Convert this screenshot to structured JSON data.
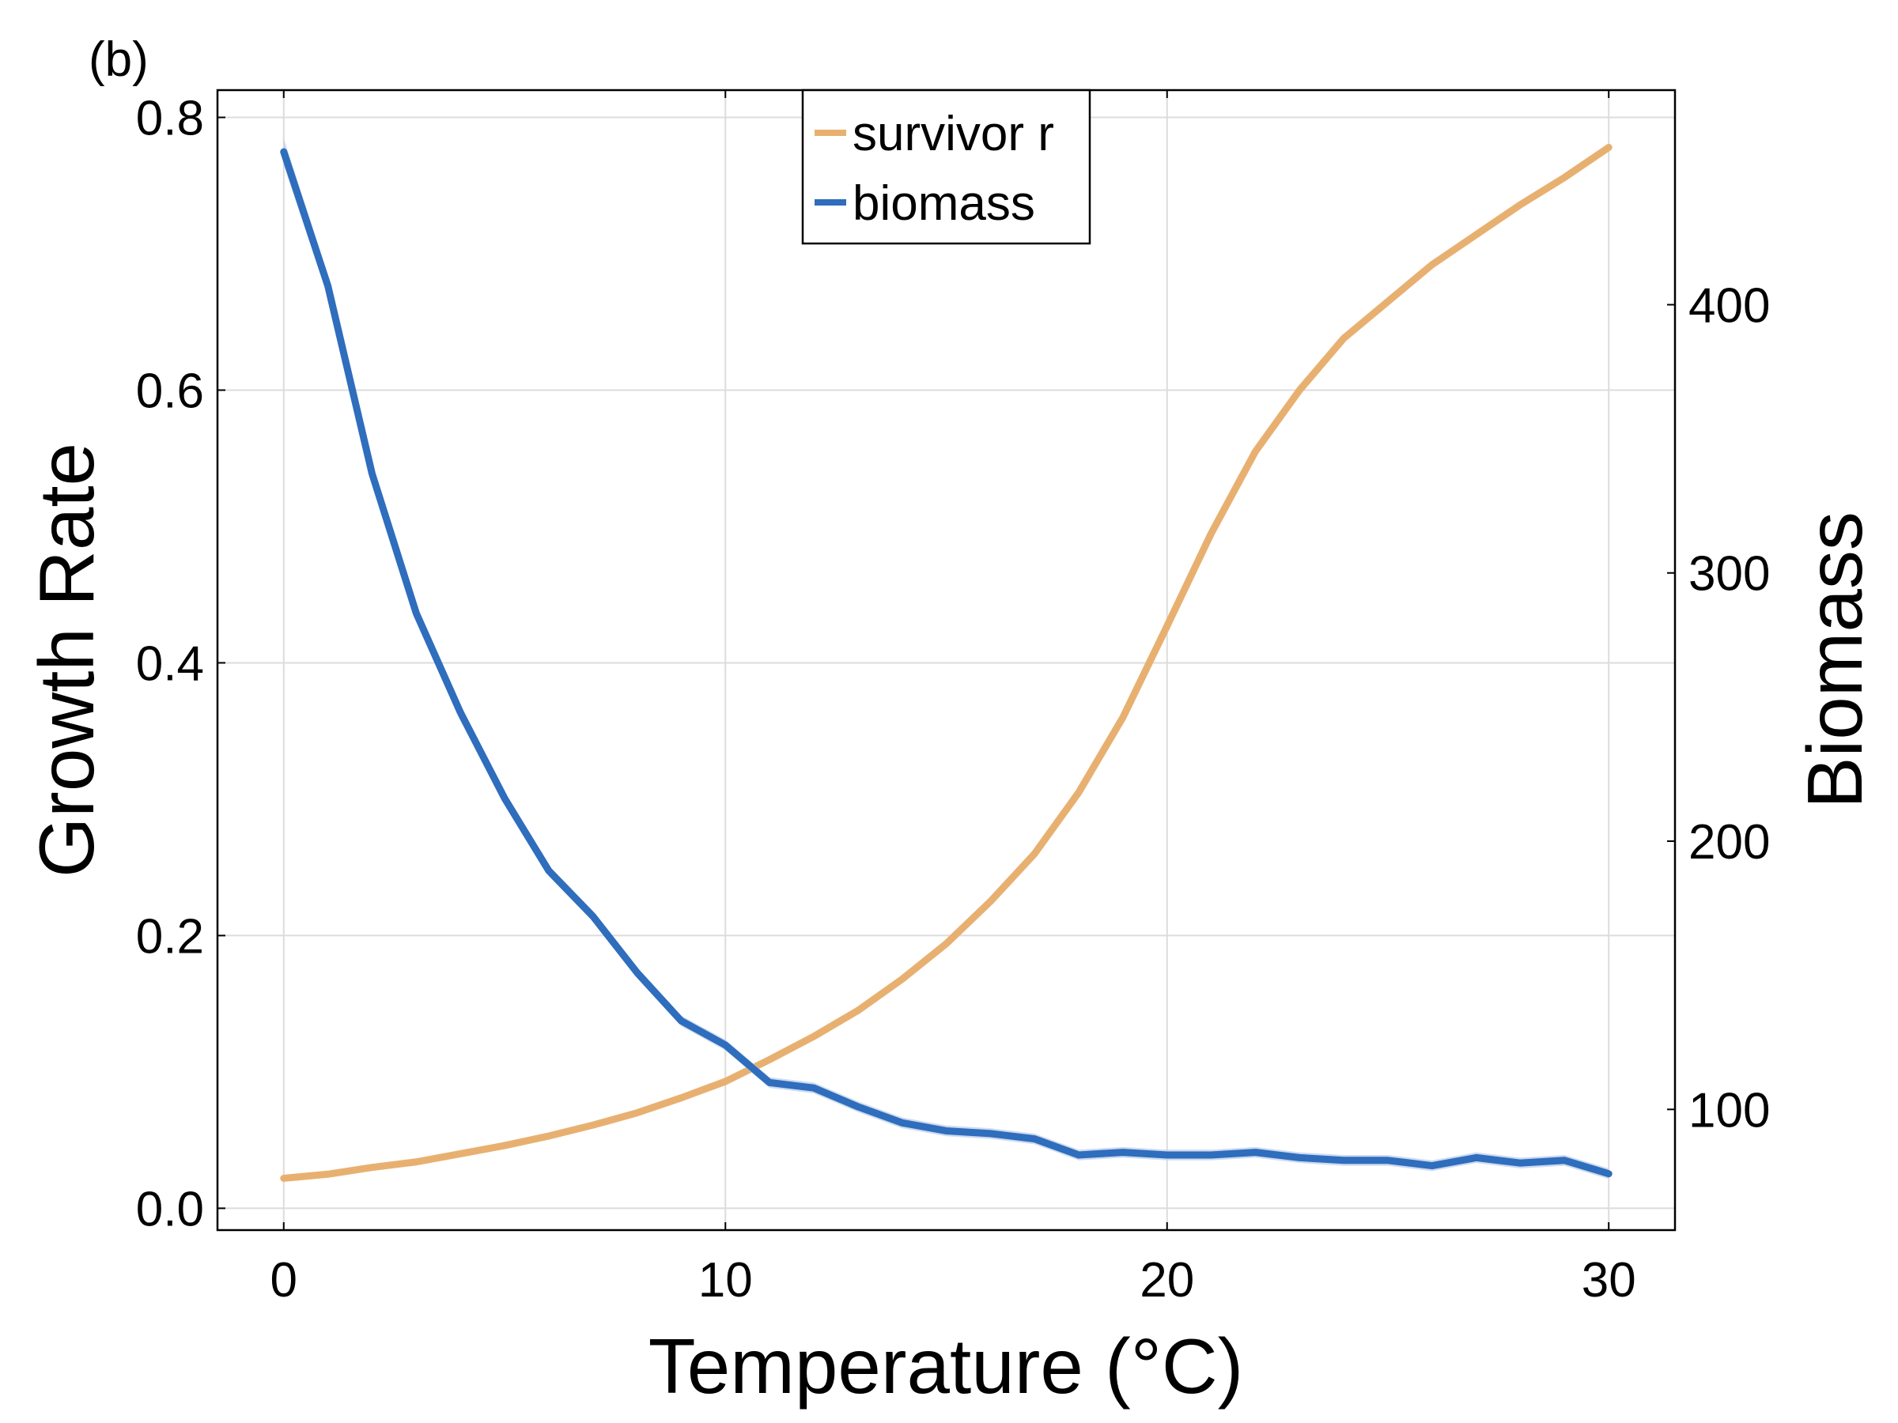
{
  "panel_label": "(b)",
  "colors": {
    "survivor_r": "#e8b070",
    "biomass": "#2f6dbd",
    "biomass_band": "#b8cce8",
    "grid": "#dcdcdc"
  },
  "chart_data": {
    "type": "line",
    "xlabel": "Temperature (°C)",
    "ylabel": "Growth Rate",
    "y2label": "Biomass",
    "xlim": [
      -1.5,
      31.5
    ],
    "ylim": [
      -0.016,
      0.82
    ],
    "y2lim": [
      55,
      480
    ],
    "xticks": [
      0,
      10,
      20,
      30
    ],
    "xtick_labels": [
      "0",
      "10",
      "20",
      "30"
    ],
    "yticks": [
      0.0,
      0.2,
      0.4,
      0.6,
      0.8
    ],
    "ytick_labels": [
      "0.0",
      "0.2",
      "0.4",
      "0.6",
      "0.8"
    ],
    "y2ticks": [
      100,
      200,
      300,
      400
    ],
    "y2tick_labels": [
      "100",
      "200",
      "300",
      "400"
    ],
    "grid": true,
    "legend_position": "top-center",
    "x": [
      0,
      1,
      2,
      3,
      4,
      5,
      6,
      7,
      8,
      9,
      10,
      11,
      12,
      13,
      14,
      15,
      16,
      17,
      18,
      19,
      20,
      21,
      22,
      23,
      24,
      25,
      26,
      27,
      28,
      29,
      30
    ],
    "series": [
      {
        "name": "survivor r",
        "axis": "left",
        "values": [
          0.022,
          0.025,
          0.03,
          0.034,
          0.04,
          0.046,
          0.053,
          0.061,
          0.07,
          0.081,
          0.093,
          0.109,
          0.126,
          0.145,
          0.168,
          0.194,
          0.225,
          0.26,
          0.305,
          0.36,
          0.427,
          0.495,
          0.555,
          0.6,
          0.638,
          0.665,
          0.692,
          0.714,
          0.736,
          0.756,
          0.778
        ]
      },
      {
        "name": "biomass",
        "axis": "right",
        "values": [
          457,
          407,
          337,
          285,
          248,
          216,
          189,
          172,
          151,
          133,
          124,
          110,
          108,
          101,
          95,
          92,
          91,
          89,
          83,
          84,
          83,
          83,
          84,
          82,
          81,
          81,
          79,
          82,
          80,
          81,
          76
        ],
        "band": [
          5,
          4,
          3,
          3,
          3,
          2,
          2,
          2,
          2,
          2,
          2,
          2,
          2,
          2,
          2,
          2,
          2,
          2,
          2,
          2,
          2,
          2,
          2,
          2,
          2,
          2,
          2,
          2,
          2,
          2,
          2
        ]
      }
    ]
  }
}
